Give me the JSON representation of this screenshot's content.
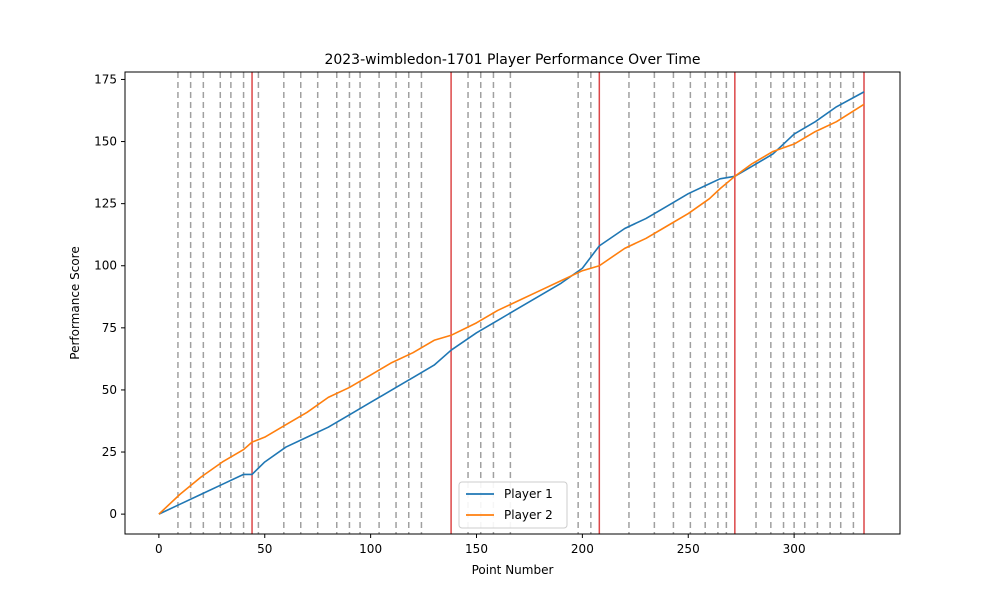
{
  "chart_data": {
    "type": "line",
    "title": "2023-wimbledon-1701 Player Performance Over Time",
    "xlabel": "Point Number",
    "ylabel": "Performance Score",
    "xlim": [
      -16,
      350
    ],
    "ylim": [
      -8,
      178
    ],
    "xticks": [
      0,
      50,
      100,
      150,
      200,
      250,
      300
    ],
    "yticks": [
      0,
      25,
      50,
      75,
      100,
      125,
      150,
      175
    ],
    "grid": false,
    "legend_position": "bottom-center",
    "series": [
      {
        "name": "Player 1",
        "color": "#1f77b4",
        "x": [
          0,
          10,
          20,
          30,
          40,
          44,
          50,
          60,
          70,
          80,
          90,
          100,
          110,
          120,
          130,
          138,
          150,
          160,
          170,
          180,
          190,
          200,
          208,
          220,
          230,
          240,
          250,
          260,
          265,
          272,
          280,
          290,
          300,
          310,
          320,
          333
        ],
        "y": [
          0,
          4,
          8,
          12,
          16,
          16,
          21,
          27,
          31,
          35,
          40,
          45,
          50,
          55,
          60,
          66,
          73,
          78,
          83,
          88,
          93,
          99,
          108,
          115,
          119,
          124,
          129,
          133,
          135,
          136,
          140,
          145,
          153,
          158,
          164,
          170
        ]
      },
      {
        "name": "Player 2",
        "color": "#ff7f0e",
        "x": [
          0,
          10,
          20,
          30,
          40,
          44,
          50,
          60,
          70,
          80,
          90,
          100,
          110,
          120,
          130,
          138,
          150,
          160,
          170,
          180,
          190,
          200,
          208,
          220,
          230,
          240,
          250,
          260,
          265,
          272,
          280,
          290,
          300,
          310,
          320,
          333
        ],
        "y": [
          0,
          8,
          15,
          21,
          26,
          29,
          31,
          36,
          41,
          47,
          51,
          56,
          61,
          65,
          70,
          72,
          77,
          82,
          86,
          90,
          94,
          98,
          100,
          107,
          111,
          116,
          121,
          127,
          131,
          136,
          141,
          146,
          149,
          154,
          158,
          165
        ]
      }
    ],
    "set_boundaries": [
      44,
      138,
      208,
      272,
      333
    ],
    "game_boundaries": [
      9,
      15,
      21,
      29,
      34,
      40,
      47,
      59,
      67,
      75,
      84,
      90,
      95,
      104,
      112,
      118,
      124,
      146,
      152,
      158,
      166,
      198,
      204,
      222,
      234,
      243,
      251,
      258,
      264,
      268,
      282,
      289,
      295,
      300,
      305,
      311,
      317,
      322,
      328
    ],
    "colors": {
      "set_line": "#d62728",
      "game_line": "#a0a0a0"
    }
  }
}
